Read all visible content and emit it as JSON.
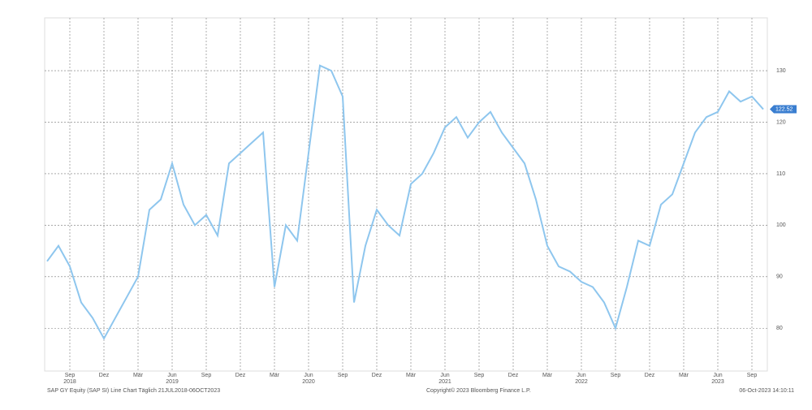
{
  "chart_data": {
    "type": "line",
    "series": [
      {
        "name": "SAP GY Equity",
        "color": "#8ec6ee",
        "values": [
          93,
          96,
          92,
          85,
          82,
          78,
          82,
          86,
          90,
          103,
          105,
          112,
          104,
          100,
          102,
          98,
          112,
          114,
          116,
          118,
          88,
          100,
          97,
          114,
          131,
          130,
          125,
          85,
          96,
          103,
          100,
          98,
          108,
          110,
          114,
          119,
          121,
          117,
          120,
          122,
          118,
          115,
          112,
          105,
          96,
          92,
          91,
          89,
          88,
          85,
          80,
          88,
          97,
          96,
          104,
          106,
          112,
          118,
          121,
          122,
          126,
          124,
          125,
          122.52
        ]
      }
    ],
    "x": [
      "2018-07",
      "2018-08",
      "2018-09",
      "2018-10",
      "2018-11",
      "2018-12",
      "2019-01",
      "2019-02",
      "2019-03",
      "2019-04",
      "2019-05",
      "2019-06",
      "2019-07",
      "2019-08",
      "2019-09",
      "2019-10",
      "2019-11",
      "2019-12",
      "2020-01",
      "2020-02",
      "2020-03",
      "2020-04",
      "2020-05",
      "2020-06",
      "2020-07",
      "2020-08",
      "2020-09",
      "2020-10",
      "2020-11",
      "2020-12",
      "2021-01",
      "2021-02",
      "2021-03",
      "2021-04",
      "2021-05",
      "2021-06",
      "2021-07",
      "2021-08",
      "2021-09",
      "2021-10",
      "2021-11",
      "2021-12",
      "2022-01",
      "2022-02",
      "2022-03",
      "2022-04",
      "2022-05",
      "2022-06",
      "2022-07",
      "2022-08",
      "2022-09",
      "2022-10",
      "2022-11",
      "2022-12",
      "2023-01",
      "2023-02",
      "2023-03",
      "2023-04",
      "2023-05",
      "2023-06",
      "2023-07",
      "2023-08",
      "2023-09",
      "2023-10"
    ],
    "xlim": [
      "2018-07",
      "2023-10"
    ],
    "xticks": [
      {
        "value": "2018-09",
        "label": "Sep",
        "year": "2018"
      },
      {
        "value": "2018-12",
        "label": "Dez"
      },
      {
        "value": "2019-03",
        "label": "Mär"
      },
      {
        "value": "2019-06",
        "label": "Jun",
        "year": "2019"
      },
      {
        "value": "2019-09",
        "label": "Sep"
      },
      {
        "value": "2019-12",
        "label": "Dez"
      },
      {
        "value": "2020-03",
        "label": "Mär"
      },
      {
        "value": "2020-06",
        "label": "Jun",
        "year": "2020"
      },
      {
        "value": "2020-09",
        "label": "Sep"
      },
      {
        "value": "2020-12",
        "label": "Dez"
      },
      {
        "value": "2021-03",
        "label": "Mär"
      },
      {
        "value": "2021-06",
        "label": "Jun",
        "year": "2021"
      },
      {
        "value": "2021-09",
        "label": "Sep"
      },
      {
        "value": "2021-12",
        "label": "Dez"
      },
      {
        "value": "2022-03",
        "label": "Mär"
      },
      {
        "value": "2022-06",
        "label": "Jun",
        "year": "2022"
      },
      {
        "value": "2022-09",
        "label": "Sep"
      },
      {
        "value": "2022-12",
        "label": "Dez"
      },
      {
        "value": "2023-03",
        "label": "Mär"
      },
      {
        "value": "2023-06",
        "label": "Jun",
        "year": "2023"
      },
      {
        "value": "2023-09",
        "label": "Sep"
      }
    ],
    "ylim": [
      72,
      139
    ],
    "yticks": [
      80,
      90,
      100,
      110,
      120,
      130
    ],
    "grid": true,
    "last_price_label": "122.52",
    "source": "SAP GY Equity (SAP SI) Line Chart  Täglich 21JUL2018-06OCT2023",
    "copyright": "Copyright© 2023 Bloomberg Finance L.P.",
    "timestamp": "06-Oct-2023 14:10:11"
  }
}
